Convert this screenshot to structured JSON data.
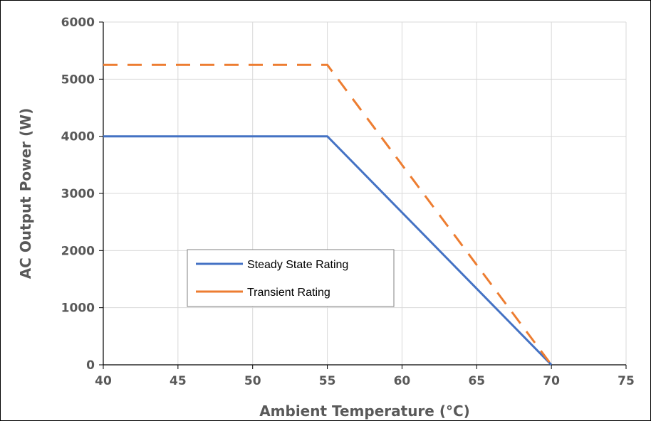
{
  "chart_data": {
    "type": "line",
    "title": "",
    "xlabel": "Ambient Temperature (°C)",
    "ylabel": "AC Output Power (W)",
    "xlim": [
      40,
      75
    ],
    "ylim": [
      0,
      6000
    ],
    "x_ticks": [
      "40",
      "45",
      "50",
      "55",
      "60",
      "65",
      "70",
      "75"
    ],
    "y_ticks": [
      "0",
      "1000",
      "2000",
      "3000",
      "4000",
      "5000",
      "6000"
    ],
    "grid": true,
    "legend_position": "center-left",
    "series": [
      {
        "name": "Steady State Rating",
        "color": "#4472C4",
        "dash": "solid",
        "points": [
          [
            40,
            4000
          ],
          [
            55,
            4000
          ],
          [
            70,
            0
          ]
        ]
      },
      {
        "name": "Transient Rating",
        "color": "#ED7D31",
        "dash": "dashed",
        "points": [
          [
            40,
            5250
          ],
          [
            55,
            5250
          ],
          [
            70,
            0
          ]
        ]
      }
    ]
  }
}
